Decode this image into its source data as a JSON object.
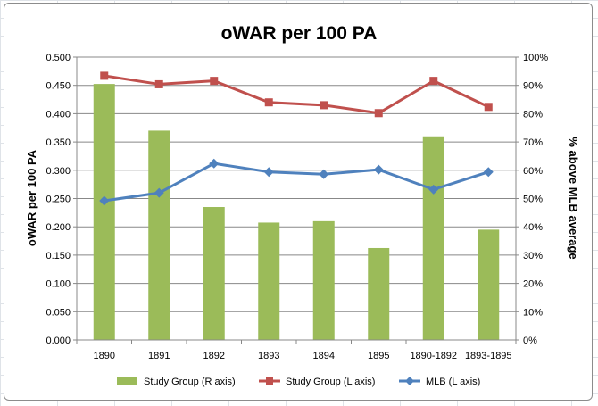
{
  "chart_data": {
    "type": "bar",
    "title": "oWAR per 100 PA",
    "categories": [
      "1890",
      "1891",
      "1892",
      "1893",
      "1894",
      "1895",
      "1890-1892",
      "1893-1895"
    ],
    "ylabel_left": "oWAR per 100 PA",
    "ylabel_right": "% above MLB average",
    "ylim_left": [
      0,
      0.5
    ],
    "ylim_right": [
      0,
      100
    ],
    "yticks_left": [
      "0.000",
      "0.050",
      "0.100",
      "0.150",
      "0.200",
      "0.250",
      "0.300",
      "0.350",
      "0.400",
      "0.450",
      "0.500"
    ],
    "yticks_right": [
      "0%",
      "10%",
      "20%",
      "30%",
      "40%",
      "50%",
      "60%",
      "70%",
      "80%",
      "90%",
      "100%"
    ],
    "grid": true,
    "legend_position": "bottom",
    "series": [
      {
        "name": "Study Group (R axis)",
        "kind": "bar",
        "axis": "right",
        "color": "#9bbb59",
        "values": [
          90.5,
          74,
          47,
          41.5,
          42,
          32.5,
          72,
          39
        ]
      },
      {
        "name": "Study Group (L axis)",
        "kind": "line",
        "axis": "left",
        "color": "#c0504d",
        "marker": "square",
        "values": [
          0.467,
          0.452,
          0.458,
          0.42,
          0.415,
          0.401,
          0.458,
          0.412
        ]
      },
      {
        "name": "MLB (L axis)",
        "kind": "line",
        "axis": "left",
        "color": "#4f81bd",
        "marker": "diamond",
        "values": [
          0.246,
          0.26,
          0.312,
          0.297,
          0.293,
          0.301,
          0.266,
          0.297
        ]
      }
    ]
  }
}
